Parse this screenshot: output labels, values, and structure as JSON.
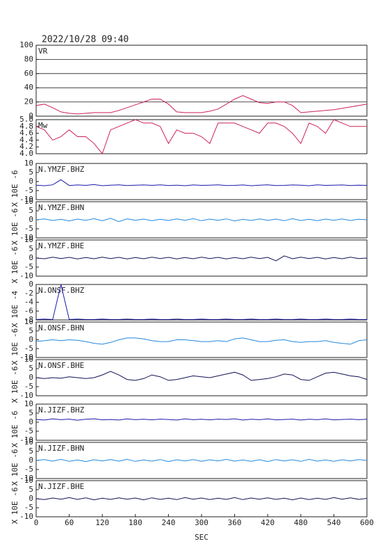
{
  "chart_data": {
    "type": "line",
    "title": "2022/10/28 09:40",
    "xlabel": "SEC",
    "x": [
      0,
      15,
      30,
      45,
      60,
      75,
      90,
      105,
      120,
      135,
      150,
      165,
      180,
      195,
      210,
      225,
      240,
      255,
      270,
      285,
      300,
      315,
      330,
      345,
      360,
      375,
      390,
      405,
      420,
      435,
      450,
      465,
      480,
      495,
      510,
      525,
      540,
      555,
      570,
      585,
      600
    ],
    "xlim": [
      0,
      600
    ],
    "xticks": [
      0,
      60,
      120,
      180,
      240,
      300,
      360,
      420,
      480,
      540,
      600
    ],
    "panels": [
      {
        "label": "VR",
        "ylim": [
          0,
          100
        ],
        "yticks": [
          0,
          20,
          40,
          60,
          80,
          100
        ],
        "grid": true,
        "series": [
          {
            "color": "#cc2255",
            "values": [
              15,
              17,
              12,
              6,
              4,
              3,
              4,
              5,
              5,
              5,
              8,
              12,
              16,
              20,
              24,
              24,
              17,
              6,
              5,
              5,
              5,
              7,
              10,
              17,
              24,
              29,
              24,
              19,
              18,
              20,
              20,
              15,
              5,
              6,
              7,
              8,
              9,
              11,
              13,
              15,
              17
            ]
          }
        ]
      },
      {
        "label": "Mw",
        "ylim": [
          4.0,
          5.0
        ],
        "yticks": [
          {
            "value": 4.0,
            "label": "4.0"
          },
          {
            "value": 4.2,
            "label": "4.2"
          },
          {
            "value": 4.4,
            "label": "4.4"
          },
          {
            "value": 4.6,
            "label": "4.6"
          },
          {
            "value": 4.8,
            "label": "4.8"
          },
          {
            "value": 5.0,
            "label": "5.0"
          }
        ],
        "grid": false,
        "series": [
          {
            "color": "#cc2255",
            "values": [
              4.8,
              4.7,
              4.4,
              4.5,
              4.7,
              4.5,
              4.5,
              4.3,
              4.0,
              4.7,
              4.8,
              4.9,
              5.0,
              4.9,
              4.9,
              4.8,
              4.3,
              4.7,
              4.6,
              4.6,
              4.5,
              4.3,
              4.9,
              4.9,
              4.9,
              4.8,
              4.7,
              4.6,
              4.9,
              4.9,
              4.8,
              4.6,
              4.3,
              4.9,
              4.8,
              4.6,
              5.0,
              4.9,
              4.8,
              4.8,
              4.8
            ]
          }
        ]
      },
      {
        "label": "N.YMZF.BHZ",
        "ylabel": "X 10E -6",
        "ylim": [
          -10,
          10
        ],
        "yticks": [
          -10,
          -5,
          0,
          5,
          10
        ],
        "grid": false,
        "series": [
          {
            "color": "#1a1aaa",
            "values": [
              -2,
              -2.3,
              -1.8,
              1,
              -2.2,
              -1.9,
              -2.1,
              -1.7,
              -2.3,
              -2,
              -1.8,
              -2.2,
              -2,
              -1.9,
              -2.1,
              -1.8,
              -2.2,
              -2,
              -2.3,
              -1.9,
              -2.1,
              -2,
              -1.8,
              -2.2,
              -2.1,
              -1.9,
              -2.3,
              -2,
              -1.8,
              -2.2,
              -2.1,
              -1.9,
              -2,
              -2.3,
              -1.8,
              -2.1,
              -2,
              -1.9,
              -2.2,
              -2,
              -2.1
            ]
          }
        ]
      },
      {
        "label": "N.YMZF.BHN",
        "ylabel": "X 10E -6",
        "ylim": [
          -10,
          10
        ],
        "yticks": [
          -10,
          -5,
          0,
          5,
          10
        ],
        "grid": false,
        "series": [
          {
            "color": "#2288dd",
            "values": [
              0,
              0.5,
              -0.4,
              0.3,
              -0.6,
              0.4,
              -0.3,
              0.6,
              -0.5,
              0.8,
              -1,
              0.5,
              -0.3,
              0.4,
              -0.5,
              0.3,
              -0.4,
              0.5,
              -0.3,
              0.6,
              -0.5,
              0.4,
              -0.3,
              0.5,
              -0.6,
              0.3,
              -0.4,
              0.5,
              -0.3,
              0.4,
              -0.5,
              0.6,
              -0.4,
              0.3,
              -0.5,
              0.4,
              -0.3,
              0.5,
              -0.4,
              0.3,
              0
            ]
          }
        ]
      },
      {
        "label": "N.YMZF.BHE",
        "ylabel": "X 10E -6",
        "ylim": [
          -10,
          10
        ],
        "yticks": [
          -10,
          -5,
          0,
          5,
          10
        ],
        "grid": false,
        "series": [
          {
            "color": "#111155",
            "values": [
              0,
              -0.4,
              0.5,
              -0.3,
              0.4,
              -0.5,
              0.3,
              -0.4,
              0.5,
              -0.3,
              0.4,
              -0.5,
              0.3,
              -0.4,
              0.5,
              -0.3,
              0.4,
              -0.5,
              0.3,
              -0.4,
              0.5,
              -0.3,
              0.4,
              -0.5,
              0.3,
              -0.4,
              0.5,
              -0.3,
              0.4,
              -1.5,
              1.2,
              -0.4,
              0.5,
              -0.3,
              0.4,
              -0.5,
              0.3,
              -0.4,
              0.5,
              -0.3,
              0
            ]
          }
        ]
      },
      {
        "label": "N.ONSF.BHZ",
        "ylabel": "X 10E -4",
        "ylim": [
          -8,
          0
        ],
        "yticks": [
          -8,
          -6,
          -4,
          -2,
          0
        ],
        "grid": false,
        "series": [
          {
            "color": "#1a1aaa",
            "values": [
              -7.9,
              -7.8,
              -7.9,
              0,
              -7.9,
              -7.8,
              -7.9,
              -7.9,
              -7.8,
              -7.9,
              -7.9,
              -7.8,
              -7.9,
              -7.9,
              -7.8,
              -7.9,
              -7.9,
              -7.8,
              -7.9,
              -7.9,
              -7.8,
              -7.9,
              -7.9,
              -7.8,
              -7.9,
              -7.9,
              -7.8,
              -7.9,
              -7.9,
              -7.8,
              -7.9,
              -7.9,
              -7.8,
              -7.9,
              -7.9,
              -7.8,
              -7.9,
              -7.9,
              -7.8,
              -7.9,
              -7.9
            ]
          }
        ]
      },
      {
        "label": "N.ONSF.BHN",
        "ylabel": "X 10E -6",
        "ylim": [
          -10,
          10
        ],
        "yticks": [
          -10,
          -5,
          0,
          5,
          10
        ],
        "grid": false,
        "series": [
          {
            "color": "#2288dd",
            "values": [
              -1,
              -0.5,
              0,
              -0.5,
              0,
              -0.3,
              -1,
              -2,
              -2.5,
              -1.5,
              0,
              1,
              1,
              0.5,
              -0.5,
              -1,
              -1,
              0,
              0,
              -0.5,
              -1,
              -1,
              -0.5,
              -1,
              0.5,
              1,
              0,
              -1,
              -1,
              -0.3,
              0,
              -1,
              -1.5,
              -1,
              -1,
              -0.5,
              -1.5,
              -2,
              -2.5,
              -0.5,
              0
            ]
          }
        ]
      },
      {
        "label": "N.ONSF.BHE",
        "ylabel": "X 10E -6",
        "ylim": [
          -10,
          10
        ],
        "yticks": [
          -10,
          -5,
          0,
          5,
          10
        ],
        "grid": false,
        "series": [
          {
            "color": "#111155",
            "values": [
              0,
              -0.5,
              0,
              -0.3,
              0.5,
              0,
              -0.5,
              0,
              1.5,
              3.5,
              1.5,
              -1,
              -1.5,
              -0.5,
              1.5,
              0.5,
              -1.5,
              -1,
              0,
              1,
              0.5,
              0,
              1,
              2,
              3,
              1.5,
              -1.5,
              -1,
              -0.5,
              0.5,
              2,
              1.5,
              -1,
              -1.5,
              0.5,
              2.5,
              3,
              2,
              1,
              0.5,
              -1
            ]
          }
        ]
      },
      {
        "label": "N.JIZF.BHZ",
        "ylabel": "X 10E -6",
        "ylim": [
          -10,
          10
        ],
        "yticks": [
          -10,
          -5,
          0,
          5,
          10
        ],
        "grid": false,
        "series": [
          {
            "color": "#1a1aaa",
            "values": [
              1.5,
              1.2,
              1.8,
              1.4,
              1.7,
              1.1,
              1.6,
              1.9,
              1.3,
              1.5,
              1.2,
              1.8,
              1.4,
              1.6,
              1.3,
              1.7,
              1.5,
              1.2,
              1.8,
              1.4,
              1.6,
              1.3,
              1.7,
              1.5,
              1.9,
              1.2,
              1.6,
              1.4,
              1.8,
              1.3,
              1.5,
              1.7,
              1.2,
              1.6,
              1.4,
              1.8,
              1.3,
              1.5,
              1.7,
              1.4,
              1.6
            ]
          }
        ]
      },
      {
        "label": "N.JIZF.BHN",
        "ylabel": "X 10E -6",
        "ylim": [
          -10,
          10
        ],
        "yticks": [
          -10,
          -5,
          0,
          5,
          10
        ],
        "grid": false,
        "series": [
          {
            "color": "#2288dd",
            "values": [
              0,
              0.5,
              -0.4,
              0.6,
              -0.5,
              0.3,
              -0.6,
              0.4,
              -0.3,
              0.5,
              -0.4,
              0.6,
              -0.5,
              0.3,
              -0.4,
              0.5,
              -0.6,
              0.4,
              -0.3,
              0.5,
              -0.5,
              0.4,
              -0.3,
              0.6,
              -0.4,
              0.3,
              -0.5,
              0.4,
              -0.6,
              0.5,
              -0.3,
              0.4,
              -0.5,
              0.6,
              -0.4,
              0.3,
              -0.5,
              0.4,
              -0.3,
              0.5,
              0
            ]
          }
        ]
      },
      {
        "label": "N.JIZF.BHE",
        "ylabel": "X 10E -6",
        "ylim": [
          -10,
          10
        ],
        "yticks": [
          -10,
          -5,
          0,
          5,
          10
        ],
        "grid": false,
        "series": [
          {
            "color": "#111155",
            "values": [
              0,
              -0.5,
              0.4,
              -0.3,
              0.6,
              -0.4,
              0.5,
              -0.6,
              0.3,
              -0.4,
              0.5,
              -0.3,
              0.4,
              -0.6,
              0.5,
              -0.4,
              0.3,
              -0.5,
              0.6,
              -0.3,
              0.4,
              -0.5,
              0.3,
              -0.4,
              0.6,
              -0.5,
              0.4,
              -0.3,
              0.5,
              -0.4,
              0.3,
              -0.6,
              0.4,
              -0.5,
              0.3,
              -0.4,
              0.6,
              -0.3,
              0.5,
              -0.4,
              0.2
            ]
          }
        ]
      }
    ]
  }
}
